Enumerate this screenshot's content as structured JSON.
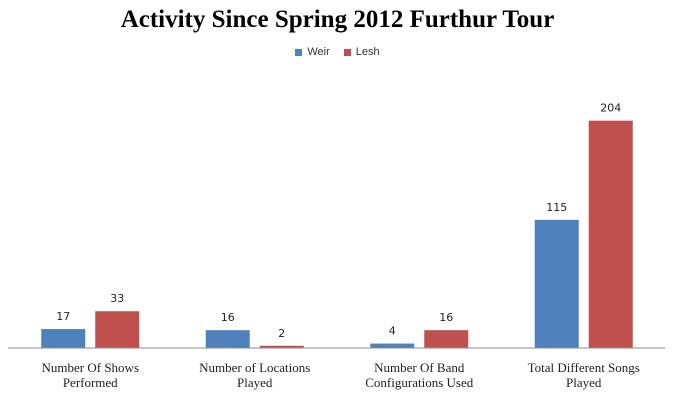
{
  "chart_data": {
    "type": "bar",
    "title": "Activity Since Spring 2012 Furthur Tour",
    "categories": [
      [
        "Number Of Shows",
        "Performed"
      ],
      [
        "Number of Locations",
        "Played"
      ],
      [
        "Number Of Band",
        "Configurations Used"
      ],
      [
        "Total Different Songs",
        "Played"
      ]
    ],
    "series": [
      {
        "name": "Weir",
        "values": [
          17,
          16,
          4,
          115
        ],
        "color": "#4F81BD"
      },
      {
        "name": "Lesh",
        "values": [
          33,
          2,
          16,
          204
        ],
        "color": "#C0504D"
      }
    ],
    "ylim": [
      0,
      245
    ],
    "grid": false,
    "legend_position": "top"
  }
}
